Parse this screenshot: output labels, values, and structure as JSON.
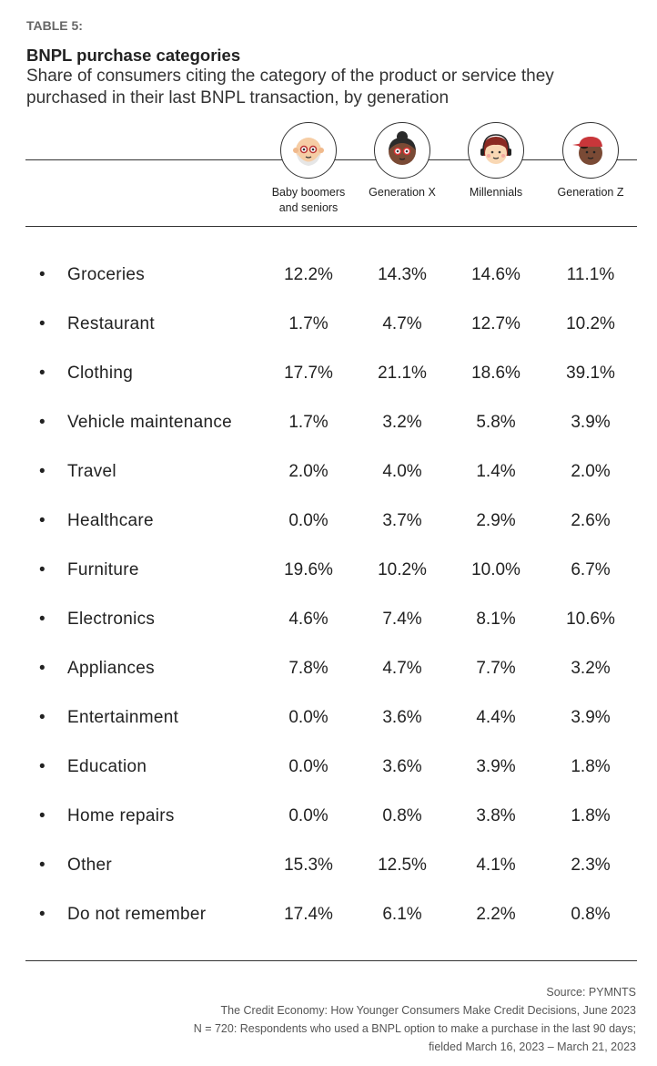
{
  "header": {
    "tag": "TABLE 5:",
    "title": "BNPL purchase categories",
    "subtitle": "Share of consumers citing the category of the product or service they purchased in their last BNPL transaction, by generation"
  },
  "chart_data": {
    "type": "table",
    "title": "BNPL purchase categories",
    "columns": [
      {
        "label": "Baby boomers and seniors",
        "icon": "boomer-face-icon"
      },
      {
        "label": "Generation X",
        "icon": "genx-face-icon"
      },
      {
        "label": "Millennials",
        "icon": "millennial-face-icon"
      },
      {
        "label": "Generation Z",
        "icon": "genz-face-icon"
      }
    ],
    "rows": [
      {
        "label": "Groceries",
        "values": [
          "12.2%",
          "14.3%",
          "14.6%",
          "11.1%"
        ]
      },
      {
        "label": "Restaurant",
        "values": [
          "1.7%",
          "4.7%",
          "12.7%",
          "10.2%"
        ]
      },
      {
        "label": "Clothing",
        "values": [
          "17.7%",
          "21.1%",
          "18.6%",
          "39.1%"
        ]
      },
      {
        "label": "Vehicle maintenance",
        "values": [
          "1.7%",
          "3.2%",
          "5.8%",
          "3.9%"
        ]
      },
      {
        "label": "Travel",
        "values": [
          "2.0%",
          "4.0%",
          "1.4%",
          "2.0%"
        ]
      },
      {
        "label": "Healthcare",
        "values": [
          "0.0%",
          "3.7%",
          "2.9%",
          "2.6%"
        ]
      },
      {
        "label": "Furniture",
        "values": [
          "19.6%",
          "10.2%",
          "10.0%",
          "6.7%"
        ]
      },
      {
        "label": "Electronics",
        "values": [
          "4.6%",
          "7.4%",
          "8.1%",
          "10.6%"
        ]
      },
      {
        "label": "Appliances",
        "values": [
          "7.8%",
          "4.7%",
          "7.7%",
          "3.2%"
        ]
      },
      {
        "label": "Entertainment",
        "values": [
          "0.0%",
          "3.6%",
          "4.4%",
          "3.9%"
        ]
      },
      {
        "label": "Education",
        "values": [
          "0.0%",
          "3.6%",
          "3.9%",
          "1.8%"
        ]
      },
      {
        "label": "Home repairs",
        "values": [
          "0.0%",
          "0.8%",
          "3.8%",
          "1.8%"
        ]
      },
      {
        "label": "Other",
        "values": [
          "15.3%",
          "12.5%",
          "4.1%",
          "2.3%"
        ]
      },
      {
        "label": "Do not remember",
        "values": [
          "17.4%",
          "6.1%",
          "2.2%",
          "0.8%"
        ]
      }
    ]
  },
  "bullet": "•",
  "footer": {
    "source": "Source: PYMNTS",
    "report": "The Credit Economy: How Younger Consumers Make Credit Decisions, June 2023",
    "sample": "N = 720: Respondents who used a BNPL option to make a purchase in the last 90 days;",
    "fielded": "fielded March 16, 2023 – March 21, 2023"
  }
}
